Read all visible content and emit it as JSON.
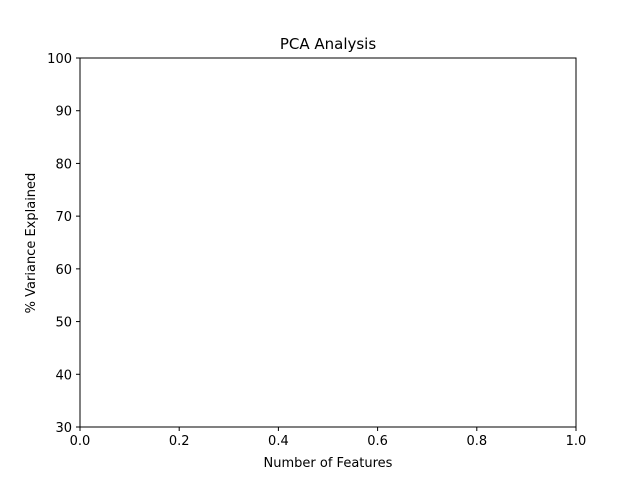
{
  "chart_data": {
    "type": "line",
    "title": "PCA Analysis",
    "xlabel": "Number of Features",
    "ylabel": "% Variance Explained",
    "xlim": [
      0.0,
      1.0
    ],
    "ylim": [
      30,
      100
    ],
    "xticks": [
      "0.0",
      "0.2",
      "0.4",
      "0.6",
      "0.8",
      "1.0"
    ],
    "yticks": [
      "30",
      "40",
      "50",
      "60",
      "70",
      "80",
      "90",
      "100"
    ],
    "grid": false,
    "series": []
  }
}
